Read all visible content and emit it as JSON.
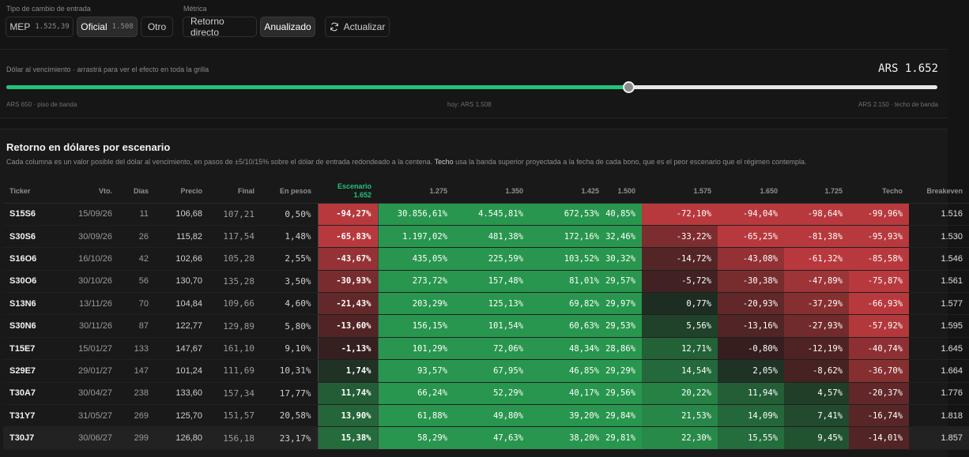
{
  "controls": {
    "entry_label": "Tipo de cambio de entrada",
    "mep_label": "MEP",
    "mep_value": "1.525,39",
    "oficial_label": "Oficial",
    "oficial_value": "1.508",
    "otro_label": "Otro",
    "metric_label": "Métrica",
    "retorno_label": "Retorno directo",
    "anualizado_label": "Anualizado",
    "actualizar_label": "Actualizar",
    "active_entry": "Oficial",
    "active_metric": "Anualizado"
  },
  "slider": {
    "label": "Dólar al vencimiento · arrastrá para ver el efecto en toda la grilla",
    "value": "ARS 1.652",
    "min_label": "ARS 650 · piso de banda",
    "mid_label": "hoy: ARS 1.508",
    "max_label": "ARS 2.150 · techo de banda",
    "min": 650,
    "max": 2150,
    "current": 1652
  },
  "table": {
    "title": "Retorno en dólares por escenario",
    "desc_pre": "Cada columna es un valor posible del dólar al vencimiento, en pasos de ±5/10/15% sobre el dólar de entrada redondeado a la centena. ",
    "desc_bold": "Techo",
    "desc_post": " usa la banda superior proyectada a la fecha de cada bono, que es el peor escenario que el régimen contempla.",
    "headers": {
      "ticker": "Ticker",
      "vto": "Vto.",
      "dias": "Días",
      "precio": "Precio",
      "final": "Final",
      "pesos": "En pesos",
      "scen_title": "Escenario",
      "scen_value": "1.652",
      "s1": "1.275",
      "s2": "1.350",
      "s3": "1.425",
      "s4": "1.500",
      "s5": "1.575",
      "s6": "1.650",
      "s7": "1.725",
      "techo": "Techo",
      "breakeven": "Breakeven"
    },
    "rows": [
      {
        "ticker": "S15S6",
        "vto": "15/09/26",
        "dias": "11",
        "precio": "106,68",
        "final": "107,21",
        "pesos": "0,50%",
        "scen": "-94,27%",
        "c1": "30.856,61%",
        "c2": "4.545,81%",
        "c3": "672,53%",
        "c4": "40,85%",
        "c5": "-72,10%",
        "c6": "-94,04%",
        "c7": "-98,64%",
        "techo": "-99,96%",
        "be": "1.516"
      },
      {
        "ticker": "S30S6",
        "vto": "30/09/26",
        "dias": "26",
        "precio": "115,82",
        "final": "117,54",
        "pesos": "1,48%",
        "scen": "-65,83%",
        "c1": "1.197,02%",
        "c2": "481,38%",
        "c3": "172,16%",
        "c4": "32,46%",
        "c5": "-33,22%",
        "c6": "-65,25%",
        "c7": "-81,38%",
        "techo": "-95,93%",
        "be": "1.530"
      },
      {
        "ticker": "S16O6",
        "vto": "16/10/26",
        "dias": "42",
        "precio": "102,66",
        "final": "105,28",
        "pesos": "2,55%",
        "scen": "-43,67%",
        "c1": "435,05%",
        "c2": "225,59%",
        "c3": "103,52%",
        "c4": "30,32%",
        "c5": "-14,72%",
        "c6": "-43,08%",
        "c7": "-61,32%",
        "techo": "-85,58%",
        "be": "1.546"
      },
      {
        "ticker": "S30O6",
        "vto": "30/10/26",
        "dias": "56",
        "precio": "130,70",
        "final": "135,28",
        "pesos": "3,50%",
        "scen": "-30,93%",
        "c1": "273,72%",
        "c2": "157,48%",
        "c3": "81,01%",
        "c4": "29,57%",
        "c5": "-5,72%",
        "c6": "-30,38%",
        "c7": "-47,89%",
        "techo": "-75,87%",
        "be": "1.561"
      },
      {
        "ticker": "S13N6",
        "vto": "13/11/26",
        "dias": "70",
        "precio": "104,84",
        "final": "109,66",
        "pesos": "4,60%",
        "scen": "-21,43%",
        "c1": "203,29%",
        "c2": "125,13%",
        "c3": "69,82%",
        "c4": "29,97%",
        "c5": "0,77%",
        "c6": "-20,93%",
        "c7": "-37,29%",
        "techo": "-66,93%",
        "be": "1.577"
      },
      {
        "ticker": "S30N6",
        "vto": "30/11/26",
        "dias": "87",
        "precio": "122,77",
        "final": "129,89",
        "pesos": "5,80%",
        "scen": "-13,60%",
        "c1": "156,15%",
        "c2": "101,54%",
        "c3": "60,63%",
        "c4": "29,53%",
        "c5": "5,56%",
        "c6": "-13,16%",
        "c7": "-27,93%",
        "techo": "-57,92%",
        "be": "1.595"
      },
      {
        "ticker": "T15E7",
        "vto": "15/01/27",
        "dias": "133",
        "precio": "147,67",
        "final": "161,10",
        "pesos": "9,10%",
        "scen": "-1,13%",
        "c1": "101,29%",
        "c2": "72,06%",
        "c3": "48,34%",
        "c4": "28,86%",
        "c5": "12,71%",
        "c6": "-0,80%",
        "c7": "-12,19%",
        "techo": "-40,74%",
        "be": "1.645"
      },
      {
        "ticker": "S29E7",
        "vto": "29/01/27",
        "dias": "147",
        "precio": "101,24",
        "final": "111,69",
        "pesos": "10,31%",
        "scen": "1,74%",
        "c1": "93,57%",
        "c2": "67,95%",
        "c3": "46,85%",
        "c4": "29,29%",
        "c5": "14,54%",
        "c6": "2,05%",
        "c7": "-8,62%",
        "techo": "-36,70%",
        "be": "1.664"
      },
      {
        "ticker": "T30A7",
        "vto": "30/04/27",
        "dias": "238",
        "precio": "133,60",
        "final": "157,34",
        "pesos": "17,77%",
        "scen": "11,74%",
        "c1": "66,24%",
        "c2": "52,29%",
        "c3": "40,17%",
        "c4": "29,56%",
        "c5": "20,22%",
        "c6": "11,94%",
        "c7": "4,57%",
        "techo": "-20,37%",
        "be": "1.776"
      },
      {
        "ticker": "T31Y7",
        "vto": "31/05/27",
        "dias": "269",
        "precio": "125,70",
        "final": "151,57",
        "pesos": "20,58%",
        "scen": "13,90%",
        "c1": "61,88%",
        "c2": "49,80%",
        "c3": "39,20%",
        "c4": "29,84%",
        "c5": "21,53%",
        "c6": "14,09%",
        "c7": "7,41%",
        "techo": "-16,74%",
        "be": "1.818"
      },
      {
        "ticker": "T30J7",
        "vto": "30/06/27",
        "dias": "299",
        "precio": "126,80",
        "final": "156,18",
        "pesos": "23,17%",
        "scen": "15,38%",
        "c1": "58,29%",
        "c2": "47,63%",
        "c3": "38,20%",
        "c4": "29,81%",
        "c5": "22,30%",
        "c6": "15,55%",
        "c7": "9,45%",
        "techo": "-14,01%",
        "be": "1.857"
      }
    ]
  },
  "colors": {
    "accent": "#22c27a",
    "strong_green": "#2f9a52",
    "strong_red": "#b8393d"
  }
}
